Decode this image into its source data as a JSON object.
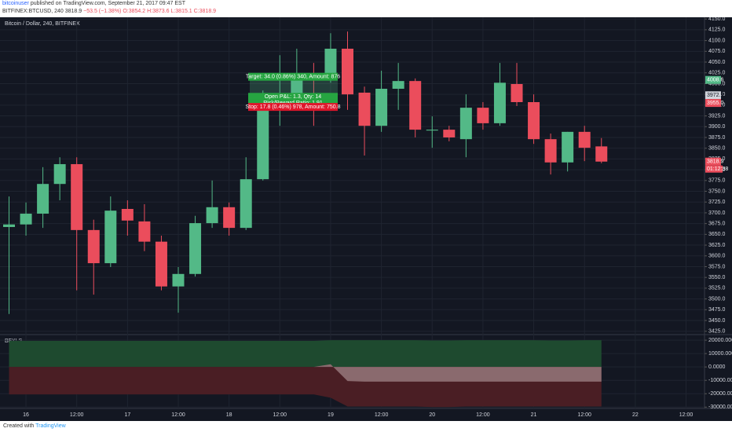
{
  "header": {
    "author": "bitcoinuser",
    "published": "published on TradingView.com, September 21, 2017 09:47 EST",
    "symbol": "BITFINEX:BTCUSD, 240",
    "last": "3818.9",
    "change": "−53.5 (−1.38%)",
    "ohlc": "O:3854.2 H:3873.6 L:3815.1 C:3818.9"
  },
  "footer": {
    "created": "Created with",
    "brand": "TradingView"
  },
  "position_tool": {
    "target": "Target: 34.0 (0.86%) 340, Amount: 876",
    "open": "Open P&L: 1.3, Qty: 14",
    "ratio": "Risk/Reward Ratio: 1.91",
    "stop": "Stop: 17.8 (0.46%) 978, Amount: 750.8"
  },
  "chart_data": [
    {
      "type": "candlestick",
      "title": "Bitcoin / Dollar, 240, BITFINEX",
      "categories": [
        null,
        "16",
        null,
        null,
        "12:00",
        null,
        null,
        "17",
        null,
        null,
        "12:00",
        null,
        null,
        "18",
        null,
        null,
        "12:00",
        null,
        null,
        "19",
        null,
        null,
        "12:00",
        null,
        null,
        "20",
        null,
        null,
        "12:00",
        null,
        null,
        "21",
        null,
        null,
        "12:00",
        null,
        null,
        "22",
        null,
        null,
        "12:00"
      ],
      "open": [
        3667,
        3673,
        3698,
        3767,
        3813,
        3660,
        3583,
        3709,
        3680,
        3633,
        3529,
        3558,
        3676,
        3713,
        3665,
        3778,
        3942,
        3957,
        4021,
        4012,
        4081,
        3979,
        3902,
        3988,
        4006,
        3891,
        3893,
        3871,
        3944,
        3908,
        3999,
        3957,
        3871,
        3817,
        3888,
        3854.2,
        null,
        null,
        null,
        null,
        null
      ],
      "high": [
        3738,
        3724,
        3806,
        3829,
        3829,
        3684,
        3738,
        3729,
        3720,
        3647,
        3574,
        3693,
        3775,
        3724,
        3829,
        3984,
        4066,
        4081,
        4048,
        4117,
        4121,
        3993,
        4030,
        4048,
        4012,
        3924,
        3902,
        3975,
        3957,
        4048,
        4048,
        3975,
        3884,
        3888,
        3902,
        3873.6,
        null,
        null,
        null,
        null,
        null
      ],
      "low": [
        3465,
        3647,
        3665,
        3729,
        3520,
        3510,
        3574,
        3647,
        3611,
        3520,
        3468,
        3552,
        3665,
        3647,
        3660,
        3775,
        3902,
        3939,
        3902,
        4002,
        3939,
        3833,
        3888,
        3939,
        3875,
        3851,
        3866,
        3829,
        3893,
        3902,
        3948,
        3860,
        3789,
        3796,
        3820,
        3815.1,
        null,
        null,
        null,
        null,
        null
      ],
      "close": [
        3673,
        3698,
        3767,
        3813,
        3660,
        3583,
        3705,
        3682,
        3633,
        3529,
        3558,
        3676,
        3713,
        3665,
        3778,
        3942,
        3957,
        4021,
        4012,
        4081,
        3975,
        3902,
        3988,
        4006,
        3893,
        3893,
        3875,
        3944,
        3908,
        4002,
        3957,
        3871,
        3817,
        3888,
        3851,
        3818.9,
        null,
        null,
        null,
        null,
        null
      ],
      "up_color": "#53b987",
      "down_color": "#eb4d5c",
      "ylim": [
        3419,
        4154
      ],
      "yticks": [
        {
          "value": 4150,
          "label": "4150.0"
        },
        {
          "value": 4125,
          "label": "4125.0"
        },
        {
          "value": 4100,
          "label": "4100.0"
        },
        {
          "value": 4075,
          "label": "4075.0"
        },
        {
          "value": 4050,
          "label": "4050.0"
        },
        {
          "value": 4025,
          "label": "4025.0"
        },
        {
          "value": 4000,
          "label": "4000.0"
        },
        {
          "value": 3975,
          "label": "3975.0"
        },
        {
          "value": 3950,
          "label": "3950.0"
        },
        {
          "value": 3925,
          "label": "3925.0"
        },
        {
          "value": 3900,
          "label": "3900.0"
        },
        {
          "value": 3875,
          "label": "3875.0"
        },
        {
          "value": 3850,
          "label": "3850.0"
        },
        {
          "value": 3825,
          "label": "3825.0"
        },
        {
          "value": 3800,
          "label": "3800.0"
        },
        {
          "value": 3775,
          "label": "3775.0"
        },
        {
          "value": 3750,
          "label": "3750.0"
        },
        {
          "value": 3725,
          "label": "3725.0"
        },
        {
          "value": 3700,
          "label": "3700.0"
        },
        {
          "value": 3675,
          "label": "3675.0"
        },
        {
          "value": 3650,
          "label": "3650.0"
        },
        {
          "value": 3625,
          "label": "3625.0"
        },
        {
          "value": 3600,
          "label": "3600.0"
        },
        {
          "value": 3575,
          "label": "3575.0"
        },
        {
          "value": 3550,
          "label": "3550.0"
        },
        {
          "value": 3525,
          "label": "3525.0"
        },
        {
          "value": 3500,
          "label": "3500.0"
        },
        {
          "value": 3475,
          "label": "3475.0"
        },
        {
          "value": 3450,
          "label": "3450.0"
        },
        {
          "value": 3425,
          "label": "3425.0"
        }
      ],
      "grid": true,
      "price_tags": [
        {
          "value": 4008.6,
          "label": "4008.6",
          "color": "#53b987"
        },
        {
          "value": 3972.9,
          "label": "3972.9",
          "color": "#d1d4dc"
        },
        {
          "value": 3955.0,
          "label": "3955.0",
          "color": "#eb4d5c"
        },
        {
          "value": 3818.9,
          "label": "3818.9",
          "color": "#eb4d5c"
        }
      ],
      "countdown": "01:12:38"
    },
    {
      "type": "area",
      "title": "BFXLS",
      "series": [
        {
          "color": "#1e4a2f",
          "values": [
            19500,
            19500,
            19500,
            19500,
            19500,
            19500,
            19500,
            19500,
            19500,
            19500,
            19500,
            19500,
            19500,
            19500,
            19500,
            19500,
            19500,
            19500,
            19500,
            20000,
            20000,
            20000,
            20000,
            20000,
            20000,
            19800,
            19800,
            20000,
            20000,
            20000,
            20000,
            20000,
            19800,
            19800,
            20000,
            20000
          ]
        },
        {
          "color": "#4a1e24",
          "values": [
            -20500,
            -20500,
            -20500,
            -20500,
            -20500,
            -20500,
            -20500,
            -20500,
            -20500,
            -20500,
            -20500,
            -20500,
            -20500,
            -20500,
            -20500,
            -20500,
            -20500,
            -20500,
            -20500,
            -23000,
            -29500,
            -29500,
            -29500,
            -29500,
            -29500,
            -30000,
            -30000,
            -29500,
            -29500,
            -29500,
            -29500,
            -29500,
            -29500,
            -29500,
            -29500,
            -29500
          ]
        },
        {
          "color": "#8a6a6e",
          "values": [
            null,
            null,
            null,
            null,
            null,
            null,
            null,
            null,
            null,
            null,
            null,
            null,
            null,
            null,
            null,
            null,
            null,
            null,
            0,
            2000,
            -10500,
            -11000,
            -11000,
            -11000,
            -11000,
            -11000,
            -11000,
            -11000,
            -11000,
            -11000,
            -11000,
            -11000,
            -11000,
            -11000,
            -11000,
            -11000
          ]
        }
      ],
      "ylim": [
        -31000,
        23000
      ],
      "yticks": [
        {
          "value": 20000,
          "label": "20000.0000"
        },
        {
          "value": 10000,
          "label": "10000.0000"
        },
        {
          "value": 0,
          "label": "0.0000"
        },
        {
          "value": -10000,
          "label": "-10000.0000"
        },
        {
          "value": -20000,
          "label": "-20000.0000"
        },
        {
          "value": -30000,
          "label": "-30000.0000"
        }
      ]
    }
  ]
}
